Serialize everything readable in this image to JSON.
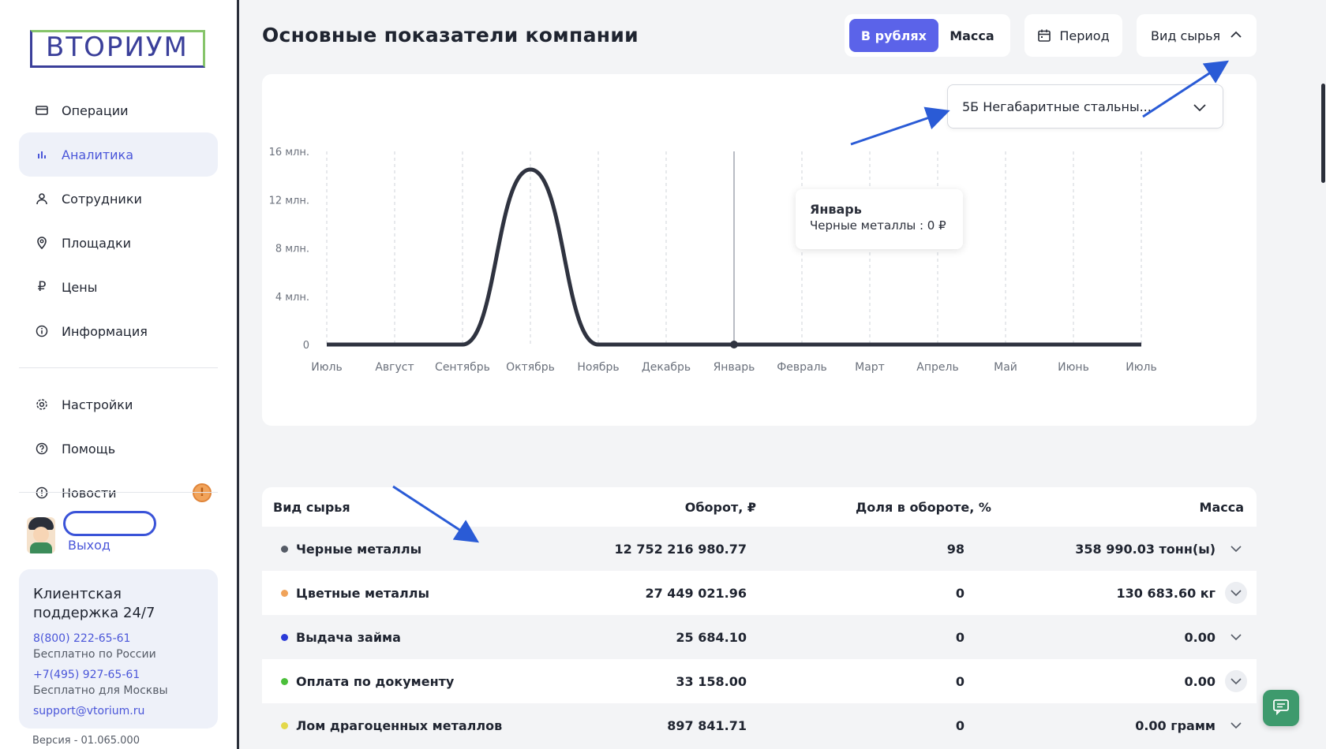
{
  "brand": {
    "logo_text": "ВТОРИУМ"
  },
  "sidebar": {
    "items": [
      {
        "label": "Операции",
        "icon": "card-icon"
      },
      {
        "label": "Аналитика",
        "icon": "chart-bars-icon",
        "active": true
      },
      {
        "label": "Сотрудники",
        "icon": "user-icon"
      },
      {
        "label": "Площадки",
        "icon": "pin-icon"
      },
      {
        "label": "Цены",
        "icon": "ruble-icon"
      },
      {
        "label": "Информация",
        "icon": "info-icon"
      }
    ],
    "items2": [
      {
        "label": "Настройки",
        "icon": "gear-icon"
      },
      {
        "label": "Помощь",
        "icon": "help-icon"
      },
      {
        "label": "Новости",
        "icon": "alert-icon",
        "badge": "!"
      }
    ],
    "logout": "Выход",
    "support": {
      "title": "Клиентская поддержка 24/7",
      "phone1": "8(800) 222-65-61",
      "phone1_note": "Бесплатно по России",
      "phone2": "+7(495) 927-65-61",
      "phone2_note": "Бесплатно для Москвы",
      "email": "support@vtorium.ru"
    },
    "version": "Версия - 01.065.000"
  },
  "header": {
    "title": "Основные показатели компании",
    "toggle_rub": "В рублях",
    "toggle_mass": "Масса",
    "period": "Период",
    "raw_type": "Вид сырья"
  },
  "filter": {
    "selected": "5Б Негабаритные стальны..."
  },
  "tooltip": {
    "month": "Январь",
    "text": "Черные металлы : 0 ₽"
  },
  "chart_data": {
    "type": "line",
    "x": [
      "Июль",
      "Август",
      "Сентябрь",
      "Октябрь",
      "Ноябрь",
      "Декабрь",
      "Январь",
      "Февраль",
      "Март",
      "Апрель",
      "Май",
      "Июнь",
      "Июль"
    ],
    "series": [
      {
        "values": [
          0,
          0,
          0,
          14.5,
          0,
          0,
          0,
          0,
          0,
          0,
          0,
          0,
          0
        ]
      }
    ],
    "y_ticks": [
      "0",
      "4 млн.",
      "8 млн.",
      "12 млн.",
      "16 млн."
    ],
    "ylim": [
      0,
      16
    ],
    "title": "",
    "xlabel": "",
    "ylabel": "",
    "grid": "vertical-dashed",
    "line_color": "#2f3340",
    "highlight_index": 6
  },
  "table": {
    "headers": [
      "Вид сырья",
      "Оборот, ₽",
      "Доля в обороте, %",
      "Масса"
    ],
    "rows": [
      {
        "name": "Черные металлы",
        "color": "#555b66",
        "turnover": "12 752 216 980.77",
        "share": "98",
        "mass": "358 990.03 тонн(ы)"
      },
      {
        "name": "Цветные металлы",
        "color": "#f0a35a",
        "turnover": "27 449 021.96",
        "share": "0",
        "mass": "130 683.60 кг"
      },
      {
        "name": "Выдача займа",
        "color": "#2a3ad8",
        "turnover": "25 684.10",
        "share": "0",
        "mass": "0.00"
      },
      {
        "name": "Оплата по документу",
        "color": "#4bbf3a",
        "turnover": "33 158.00",
        "share": "0",
        "mass": "0.00"
      },
      {
        "name": "Лом драгоценных металлов",
        "color": "#e3d84a",
        "turnover": "897 841.71",
        "share": "0",
        "mass": "0.00 грамм"
      }
    ]
  },
  "colors": {
    "accent": "#5b63e9",
    "link": "#4a56d9",
    "annotation_arrow": "#2a5bd6"
  }
}
